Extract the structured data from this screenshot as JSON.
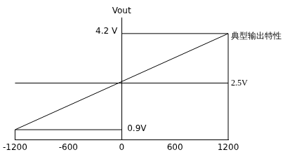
{
  "chart_data": {
    "type": "line",
    "y_label": "Vout",
    "x": [
      -1200,
      1200
    ],
    "series": [
      {
        "name": "典型输出特性",
        "color": "#000000",
        "values": [
          0.9,
          4.2
        ]
      }
    ],
    "xlim": [
      -1200,
      1200
    ],
    "xticks": [
      -1200,
      -600,
      0,
      600,
      1200
    ],
    "ylim": [
      0.55,
      4.75
    ],
    "annotations": [
      {
        "text": "4.2 V",
        "y": 4.2
      },
      {
        "text": "0.9V",
        "y": 0.9
      },
      {
        "text": "2.5V",
        "y": 2.5
      }
    ],
    "tick_labels": "x",
    "grid": false,
    "legend": "none"
  }
}
